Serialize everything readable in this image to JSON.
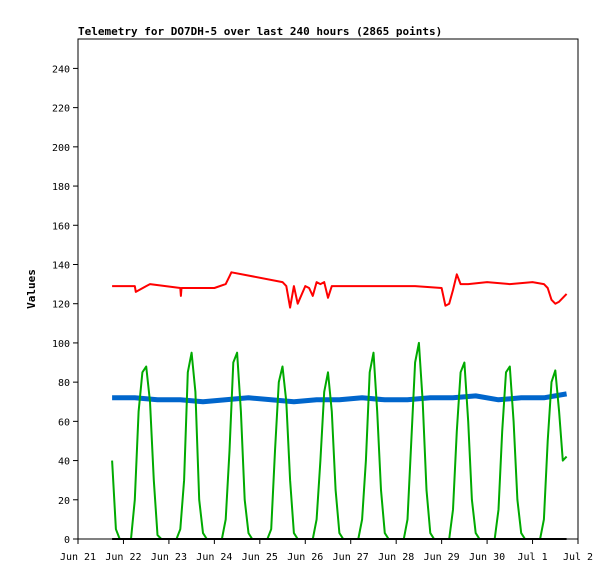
{
  "chart_data": {
    "type": "line",
    "title": "Telemetry for DO7DH-5 over last 240 hours (2865 points)",
    "xlabel": "",
    "ylabel": "Values",
    "ylim": [
      0,
      255
    ],
    "yticks": [
      0,
      20,
      40,
      60,
      80,
      100,
      120,
      140,
      160,
      180,
      200,
      220,
      240
    ],
    "xlim": [
      "2023-06-21",
      "2023-07-02"
    ],
    "x_ticks": [
      "Jun 21",
      "Jun 22",
      "Jun 23",
      "Jun 24",
      "Jun 25",
      "Jun 26",
      "Jun 27",
      "Jun 28",
      "Jun 29",
      "Jun 30",
      "Jul 1",
      "Jul 2"
    ],
    "grid": false,
    "legend": "none",
    "series": [
      {
        "color": "#ff0000",
        "x": [
          "2023-06-21 18:00",
          "2023-06-22 06:00",
          "2023-06-22 06:30",
          "2023-06-22 12:00",
          "2023-06-22 14:00",
          "2023-06-23 06:00",
          "2023-06-23 06:20",
          "2023-06-23 06:40",
          "2023-06-23 12:00",
          "2023-06-24 00:00",
          "2023-06-24 06:00",
          "2023-06-24 08:00",
          "2023-06-24 09:00",
          "2023-06-25 12:00",
          "2023-06-25 14:00",
          "2023-06-25 16:00",
          "2023-06-25 18:00",
          "2023-06-25 20:00",
          "2023-06-26 00:00",
          "2023-06-26 02:00",
          "2023-06-26 04:00",
          "2023-06-26 06:00",
          "2023-06-26 08:00",
          "2023-06-26 10:00",
          "2023-06-26 12:00",
          "2023-06-26 14:00",
          "2023-06-27 00:00",
          "2023-06-27 12:00",
          "2023-06-28 00:00",
          "2023-06-28 10:00",
          "2023-06-29 00:00",
          "2023-06-29 02:00",
          "2023-06-29 04:00",
          "2023-06-29 06:00",
          "2023-06-29 08:00",
          "2023-06-29 10:00",
          "2023-06-29 14:00",
          "2023-06-30 00:00",
          "2023-06-30 12:00",
          "2023-07-01 00:00",
          "2023-07-01 06:00",
          "2023-07-01 08:00",
          "2023-07-01 10:00",
          "2023-07-01 12:00",
          "2023-07-01 14:00",
          "2023-07-01 18:00"
        ],
        "values": [
          129,
          129,
          126,
          129,
          130,
          128,
          124,
          128,
          128,
          128,
          130,
          134,
          136,
          131,
          129,
          118,
          129,
          120,
          129,
          128,
          124,
          131,
          130,
          131,
          123,
          129,
          129,
          129,
          129,
          129,
          128,
          119,
          120,
          127,
          135,
          130,
          130,
          131,
          130,
          131,
          130,
          128,
          122,
          120,
          121,
          125
        ]
      },
      {
        "color": "#0066cc",
        "x": [
          "2023-06-21 18:00",
          "2023-06-22 06:00",
          "2023-06-22 18:00",
          "2023-06-23 06:00",
          "2023-06-23 18:00",
          "2023-06-24 06:00",
          "2023-06-24 18:00",
          "2023-06-25 06:00",
          "2023-06-25 18:00",
          "2023-06-26 06:00",
          "2023-06-26 18:00",
          "2023-06-27 06:00",
          "2023-06-27 18:00",
          "2023-06-28 06:00",
          "2023-06-28 18:00",
          "2023-06-29 06:00",
          "2023-06-29 18:00",
          "2023-06-30 06:00",
          "2023-06-30 18:00",
          "2023-07-01 06:00",
          "2023-07-01 18:00"
        ],
        "values": [
          72,
          72,
          71,
          71,
          70,
          71,
          72,
          71,
          70,
          71,
          71,
          72,
          71,
          71,
          72,
          72,
          73,
          71,
          72,
          72,
          74
        ]
      },
      {
        "color": "#00aa00",
        "x": [
          "2023-06-21 18:00",
          "2023-06-21 20:00",
          "2023-06-21 22:00",
          "2023-06-22 00:00",
          "2023-06-22 02:00",
          "2023-06-22 04:00",
          "2023-06-22 06:00",
          "2023-06-22 08:00",
          "2023-06-22 10:00",
          "2023-06-22 12:00",
          "2023-06-22 14:00",
          "2023-06-22 16:00",
          "2023-06-22 18:00",
          "2023-06-22 20:00",
          "2023-06-23 00:00",
          "2023-06-23 04:00",
          "2023-06-23 06:00",
          "2023-06-23 08:00",
          "2023-06-23 10:00",
          "2023-06-23 12:00",
          "2023-06-23 14:00",
          "2023-06-23 16:00",
          "2023-06-23 18:00",
          "2023-06-23 20:00",
          "2023-06-24 00:00",
          "2023-06-24 04:00",
          "2023-06-24 06:00",
          "2023-06-24 08:00",
          "2023-06-24 10:00",
          "2023-06-24 12:00",
          "2023-06-24 14:00",
          "2023-06-24 16:00",
          "2023-06-24 18:00",
          "2023-06-24 20:00",
          "2023-06-25 00:00",
          "2023-06-25 04:00",
          "2023-06-25 06:00",
          "2023-06-25 08:00",
          "2023-06-25 10:00",
          "2023-06-25 12:00",
          "2023-06-25 14:00",
          "2023-06-25 16:00",
          "2023-06-25 18:00",
          "2023-06-25 20:00",
          "2023-06-26 00:00",
          "2023-06-26 04:00",
          "2023-06-26 06:00",
          "2023-06-26 08:00",
          "2023-06-26 10:00",
          "2023-06-26 12:00",
          "2023-06-26 14:00",
          "2023-06-26 16:00",
          "2023-06-26 18:00",
          "2023-06-26 20:00",
          "2023-06-27 00:00",
          "2023-06-27 04:00",
          "2023-06-27 06:00",
          "2023-06-27 08:00",
          "2023-06-27 10:00",
          "2023-06-27 12:00",
          "2023-06-27 14:00",
          "2023-06-27 16:00",
          "2023-06-27 18:00",
          "2023-06-27 20:00",
          "2023-06-28 00:00",
          "2023-06-28 04:00",
          "2023-06-28 06:00",
          "2023-06-28 08:00",
          "2023-06-28 10:00",
          "2023-06-28 12:00",
          "2023-06-28 14:00",
          "2023-06-28 16:00",
          "2023-06-28 18:00",
          "2023-06-28 20:00",
          "2023-06-29 00:00",
          "2023-06-29 04:00",
          "2023-06-29 06:00",
          "2023-06-29 08:00",
          "2023-06-29 10:00",
          "2023-06-29 12:00",
          "2023-06-29 14:00",
          "2023-06-29 16:00",
          "2023-06-29 18:00",
          "2023-06-29 20:00",
          "2023-06-30 00:00",
          "2023-06-30 04:00",
          "2023-06-30 06:00",
          "2023-06-30 08:00",
          "2023-06-30 10:00",
          "2023-06-30 12:00",
          "2023-06-30 14:00",
          "2023-06-30 16:00",
          "2023-06-30 18:00",
          "2023-06-30 20:00",
          "2023-07-01 00:00",
          "2023-07-01 04:00",
          "2023-07-01 06:00",
          "2023-07-01 08:00",
          "2023-07-01 10:00",
          "2023-07-01 12:00",
          "2023-07-01 14:00",
          "2023-07-01 16:00",
          "2023-07-01 18:00"
        ],
        "values": [
          40,
          5,
          0,
          0,
          0,
          0,
          20,
          65,
          85,
          88,
          70,
          30,
          2,
          0,
          0,
          0,
          5,
          30,
          85,
          95,
          75,
          20,
          3,
          0,
          0,
          0,
          10,
          45,
          90,
          95,
          65,
          20,
          3,
          0,
          0,
          0,
          5,
          45,
          80,
          88,
          70,
          30,
          3,
          0,
          0,
          0,
          10,
          40,
          75,
          85,
          65,
          25,
          3,
          0,
          0,
          0,
          10,
          40,
          85,
          95,
          65,
          25,
          3,
          0,
          0,
          0,
          10,
          50,
          90,
          100,
          70,
          25,
          3,
          0,
          0,
          0,
          15,
          55,
          85,
          90,
          60,
          20,
          3,
          0,
          0,
          0,
          15,
          55,
          85,
          88,
          60,
          20,
          3,
          0,
          0,
          0,
          10,
          50,
          80,
          86,
          65,
          40,
          42
        ]
      },
      {
        "color": "#000000",
        "x": [
          "2023-06-21 18:00",
          "2023-07-01 18:00"
        ],
        "values": [
          0,
          0
        ]
      }
    ]
  }
}
